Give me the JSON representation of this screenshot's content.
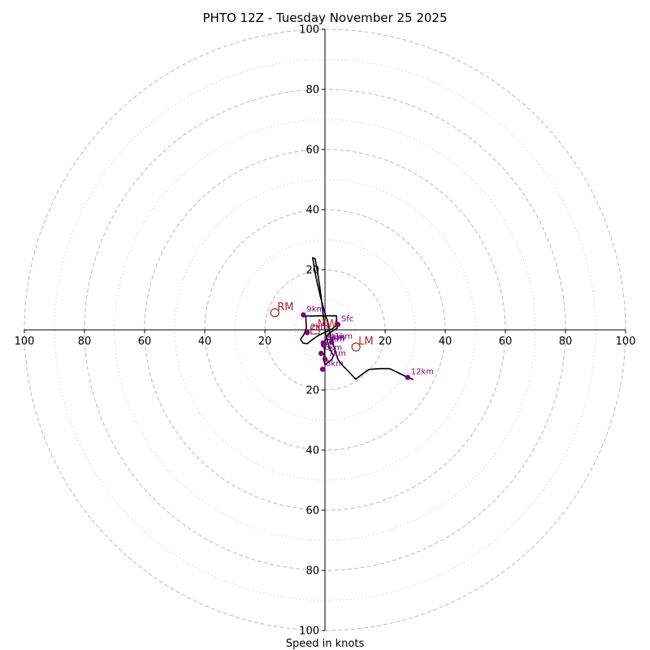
{
  "chart_data": {
    "type": "line",
    "title": "PHTO 12Z - Tuesday November 25 2025",
    "xlabel": "Speed in knots",
    "ylabel": "",
    "xlim": [
      -100,
      100
    ],
    "ylim": [
      -100,
      100
    ],
    "rings": {
      "major": [
        20,
        40,
        60,
        80,
        100
      ],
      "minor": [
        10,
        30,
        50,
        70,
        90
      ]
    },
    "x_tick_labels": [
      {
        "value": -100,
        "label": "100"
      },
      {
        "value": -80,
        "label": "80"
      },
      {
        "value": -60,
        "label": "60"
      },
      {
        "value": -40,
        "label": "40"
      },
      {
        "value": -20,
        "label": "20"
      },
      {
        "value": 20,
        "label": "20"
      },
      {
        "value": 40,
        "label": "40"
      },
      {
        "value": 60,
        "label": "60"
      },
      {
        "value": 80,
        "label": "80"
      },
      {
        "value": 100,
        "label": "100"
      }
    ],
    "y_tick_labels": [
      {
        "value": 100,
        "label": "100"
      },
      {
        "value": 80,
        "label": "80"
      },
      {
        "value": 60,
        "label": "60"
      },
      {
        "value": 40,
        "label": "40"
      },
      {
        "value": 20,
        "label": "20"
      },
      {
        "value": -20,
        "label": "20"
      },
      {
        "value": -40,
        "label": "40"
      },
      {
        "value": -60,
        "label": "60"
      },
      {
        "value": -80,
        "label": "80"
      },
      {
        "value": -100,
        "label": "100"
      }
    ],
    "hodograph": {
      "u": [
        4.3,
        2.8,
        1.6,
        0.5,
        -0.9,
        -2.4,
        -4.1,
        -5.9,
        -7.3,
        -8.2,
        -7.0,
        -6.2,
        -6.4,
        3.8,
        4.0,
        1.2,
        0.2,
        -0.3,
        -0.1,
        -0.5,
        0.0,
        1.0,
        2.3,
        2.8,
        1.6,
        0.8,
        0.1,
        -0.4,
        -0.9,
        -1.5,
        -2.3,
        -3.3,
        -4.1,
        -3.0,
        -1.6,
        -0.3,
        0.8,
        1.6,
        2.4,
        3.3,
        4.3,
        5.8,
        7.4,
        10.2,
        14.5,
        18.0,
        21.5,
        24.8,
        27.5,
        29.4
      ],
      "v": [
        1.8,
        0.6,
        0.0,
        -0.6,
        -1.2,
        -2.0,
        -3.2,
        -4.6,
        -4.4,
        -3.2,
        -1.5,
        0.7,
        4.6,
        4.7,
        0.5,
        -1.2,
        -3.3,
        -5.5,
        -7.5,
        -9.8,
        -11.6,
        -10.8,
        -9.8,
        -8.5,
        -6.4,
        -3.7,
        -0.7,
        3.0,
        7.6,
        12.8,
        18.0,
        23.7,
        24.0,
        17.5,
        11.3,
        6.5,
        2.8,
        -0.7,
        -3.9,
        -6.6,
        -9.8,
        -11.8,
        -13.4,
        -16.4,
        -13.2,
        -12.9,
        -12.9,
        -14.5,
        -15.8,
        -16.5
      ]
    },
    "height_markers": [
      {
        "label": "Sfc",
        "u": 4.3,
        "v": 1.8
      },
      {
        "label": "1km",
        "u": 2.2,
        "v": -4.1
      },
      {
        "label": "2km",
        "u": -5.9,
        "v": -0.9
      },
      {
        "label": "3km",
        "u": -0.6,
        "v": -4.3
      },
      {
        "label": "4km",
        "u": -0.5,
        "v": -5.0
      },
      {
        "label": "5km",
        "u": -0.2,
        "v": -4.5
      },
      {
        "label": "6km",
        "u": -1.3,
        "v": -7.8
      },
      {
        "label": "7km",
        "u": 0.0,
        "v": -9.7
      },
      {
        "label": "8km",
        "u": -0.8,
        "v": -13.1
      },
      {
        "label": "9km",
        "u": -7.2,
        "v": 5.0
      },
      {
        "label": "12km",
        "u": 27.5,
        "v": -15.8
      }
    ],
    "storm_motion": [
      {
        "label": "RM",
        "u": -16.7,
        "v": 5.7,
        "marker": "circle"
      },
      {
        "label": "LM",
        "u": 10.3,
        "v": -5.7,
        "marker": "circle"
      },
      {
        "label": "MW",
        "u": -3.3,
        "v": 0.0,
        "marker": "square"
      }
    ],
    "colors": {
      "hodograph": "#000000",
      "height_markers": "#800080",
      "storm_motion": "#b22222",
      "rings": "#bbbbbb",
      "axes": "#000000"
    },
    "grid": true
  }
}
